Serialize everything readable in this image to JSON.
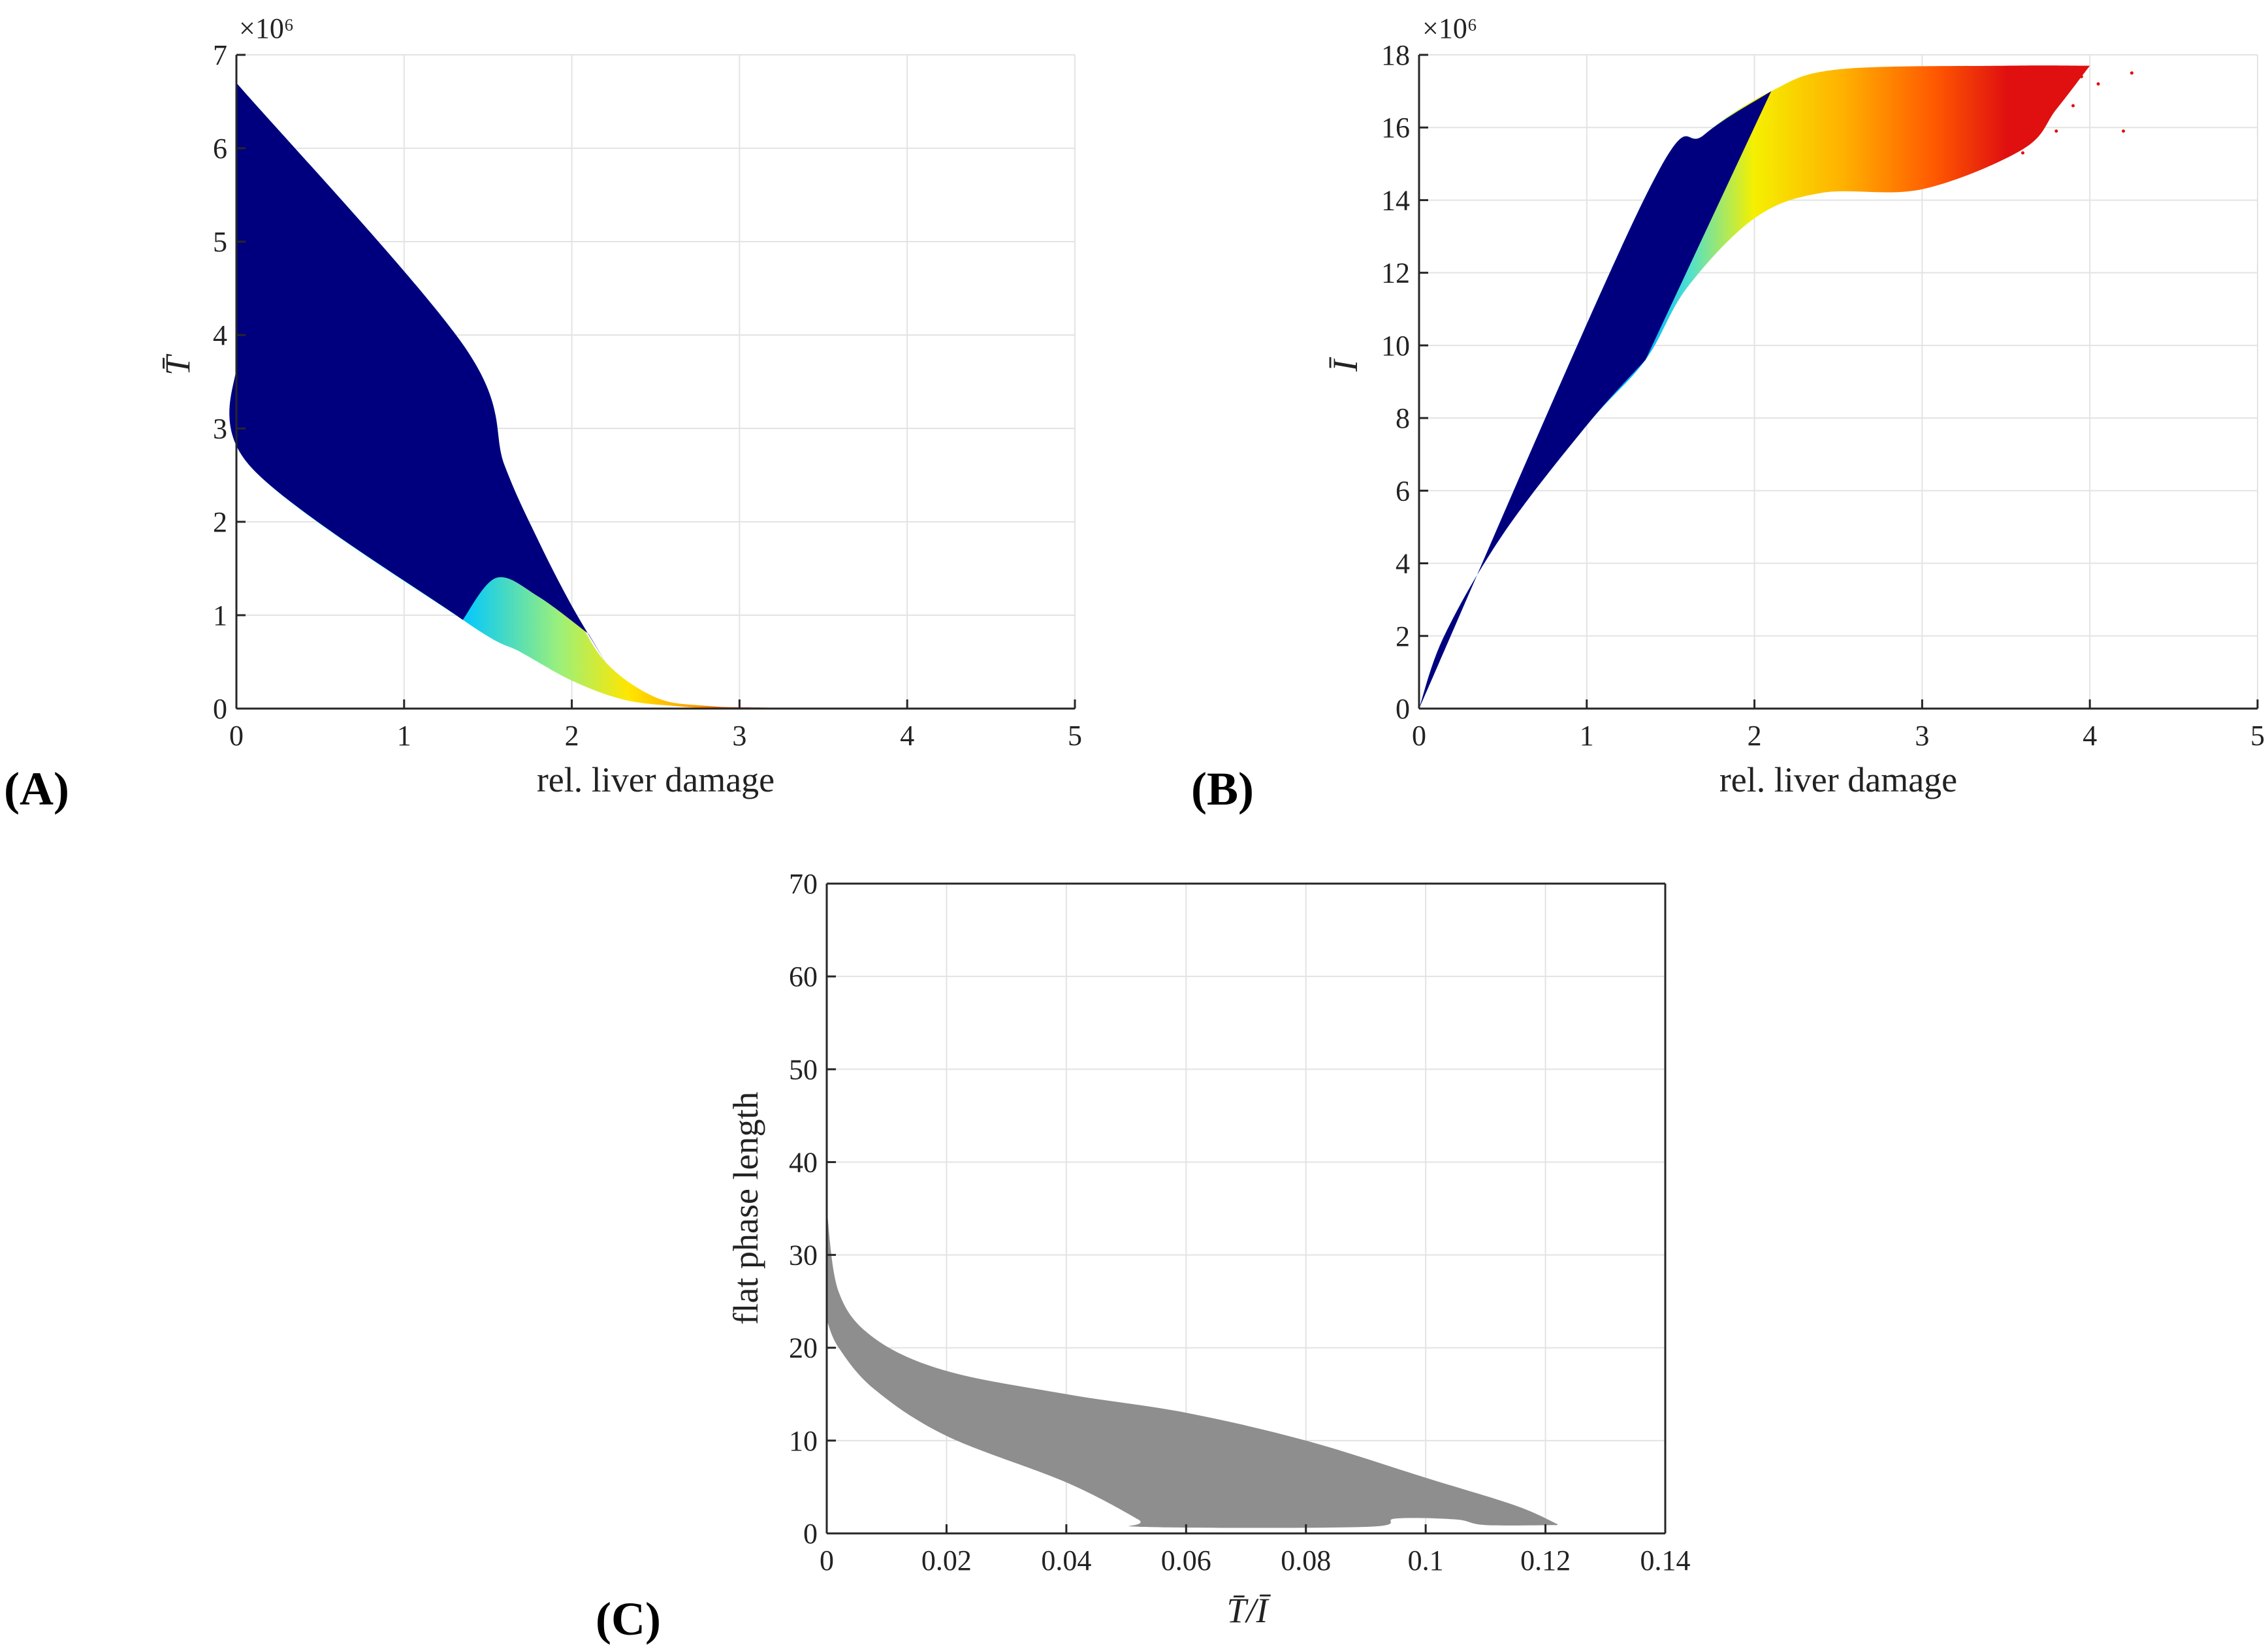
{
  "chart_data": [
    {
      "id": "A",
      "type": "scatter",
      "panel_label": "(A)",
      "xlabel": "rel. liver damage",
      "ylabel": "T̄",
      "y_exponent": "×10⁶",
      "xlim": [
        0,
        5
      ],
      "ylim": [
        0,
        7
      ],
      "xticks": [
        "0",
        "1",
        "2",
        "3",
        "4",
        "5"
      ],
      "yticks": [
        "0",
        "1",
        "2",
        "3",
        "4",
        "5",
        "6",
        "7"
      ],
      "grid": true,
      "region_upper_boundary": [
        [
          0,
          6.7
        ],
        [
          1.35,
          3.9
        ],
        [
          1.6,
          2.6
        ],
        [
          1.8,
          1.8
        ],
        [
          2.0,
          1.1
        ],
        [
          2.2,
          0.5
        ],
        [
          2.5,
          0.12
        ],
        [
          2.8,
          0.03
        ],
        [
          3.2,
          0.01
        ],
        [
          4.3,
          0.0
        ]
      ],
      "region_lower_boundary": [
        [
          0,
          3.7
        ],
        [
          0.08,
          2.6
        ],
        [
          1.35,
          0.95
        ],
        [
          1.7,
          0.6
        ],
        [
          2.0,
          0.3
        ],
        [
          2.3,
          0.1
        ],
        [
          2.6,
          0.03
        ],
        [
          3.0,
          0.0
        ],
        [
          4.3,
          0.0
        ]
      ],
      "colored_region_top_boundary": [
        [
          1.35,
          0.95
        ],
        [
          1.55,
          1.4
        ],
        [
          1.8,
          1.2
        ],
        [
          2.1,
          0.8
        ]
      ],
      "color_note": "dark blue for rel. liver damage < 1.35, then cyan→yellow→orange→red with increasing damage"
    },
    {
      "id": "B",
      "type": "scatter",
      "panel_label": "(B)",
      "xlabel": "rel. liver damage",
      "ylabel": "Ī",
      "y_exponent": "×10⁶",
      "xlim": [
        0,
        5
      ],
      "ylim": [
        0,
        18
      ],
      "xticks": [
        "0",
        "1",
        "2",
        "3",
        "4",
        "5"
      ],
      "yticks": [
        "0",
        "2",
        "4",
        "6",
        "8",
        "10",
        "12",
        "14",
        "16",
        "18"
      ],
      "grid": true,
      "region_upper_boundary": [
        [
          0,
          0
        ],
        [
          1.35,
          14.1
        ],
        [
          1.7,
          15.8
        ],
        [
          2.1,
          17.0
        ],
        [
          2.5,
          17.6
        ],
        [
          3.5,
          17.7
        ],
        [
          4.0,
          17.7
        ]
      ],
      "region_lower_boundary": [
        [
          0,
          0
        ],
        [
          0.15,
          2.0
        ],
        [
          0.5,
          4.8
        ],
        [
          1.0,
          7.8
        ],
        [
          1.35,
          9.6
        ],
        [
          1.6,
          11.6
        ],
        [
          2.0,
          13.5
        ],
        [
          2.4,
          14.2
        ],
        [
          3.0,
          14.3
        ],
        [
          3.6,
          15.4
        ],
        [
          3.8,
          16.5
        ],
        [
          4.0,
          17.7
        ]
      ],
      "scatter_outliers": [
        [
          3.6,
          15.3
        ],
        [
          3.8,
          15.9
        ],
        [
          3.9,
          16.6
        ],
        [
          4.05,
          17.2
        ],
        [
          4.25,
          17.5
        ],
        [
          3.7,
          16.2
        ],
        [
          3.95,
          17.4
        ],
        [
          4.2,
          15.9
        ]
      ],
      "color_note": "dark blue for rel. liver damage < 1.35, then cyan→yellow→orange→red with increasing damage"
    },
    {
      "id": "C",
      "type": "scatter",
      "panel_label": "(C)",
      "xlabel": "T̄/Ī",
      "ylabel": "flat phase length",
      "xlim": [
        0,
        0.14
      ],
      "ylim": [
        0,
        70
      ],
      "xticks": [
        "0",
        "0.02",
        "0.04",
        "0.06",
        "0.08",
        "0.1",
        "0.12",
        "0.14"
      ],
      "yticks": [
        "0",
        "10",
        "20",
        "30",
        "40",
        "50",
        "60",
        "70"
      ],
      "grid": true,
      "color": "#8e8e8e",
      "region_upper_boundary": [
        [
          0,
          35
        ],
        [
          0.002,
          26
        ],
        [
          0.008,
          21
        ],
        [
          0.02,
          17.5
        ],
        [
          0.04,
          15
        ],
        [
          0.06,
          13
        ],
        [
          0.08,
          10
        ],
        [
          0.1,
          6
        ],
        [
          0.115,
          3
        ],
        [
          0.122,
          1
        ]
      ],
      "region_lower_boundary": [
        [
          0,
          23
        ],
        [
          0.002,
          20
        ],
        [
          0.008,
          15.5
        ],
        [
          0.02,
          10.5
        ],
        [
          0.04,
          5.5
        ],
        [
          0.052,
          1.5
        ],
        [
          0.053,
          0.7
        ],
        [
          0.09,
          0.7
        ],
        [
          0.095,
          1.6
        ],
        [
          0.105,
          1.5
        ],
        [
          0.11,
          0.9
        ],
        [
          0.122,
          0.9
        ]
      ]
    }
  ]
}
